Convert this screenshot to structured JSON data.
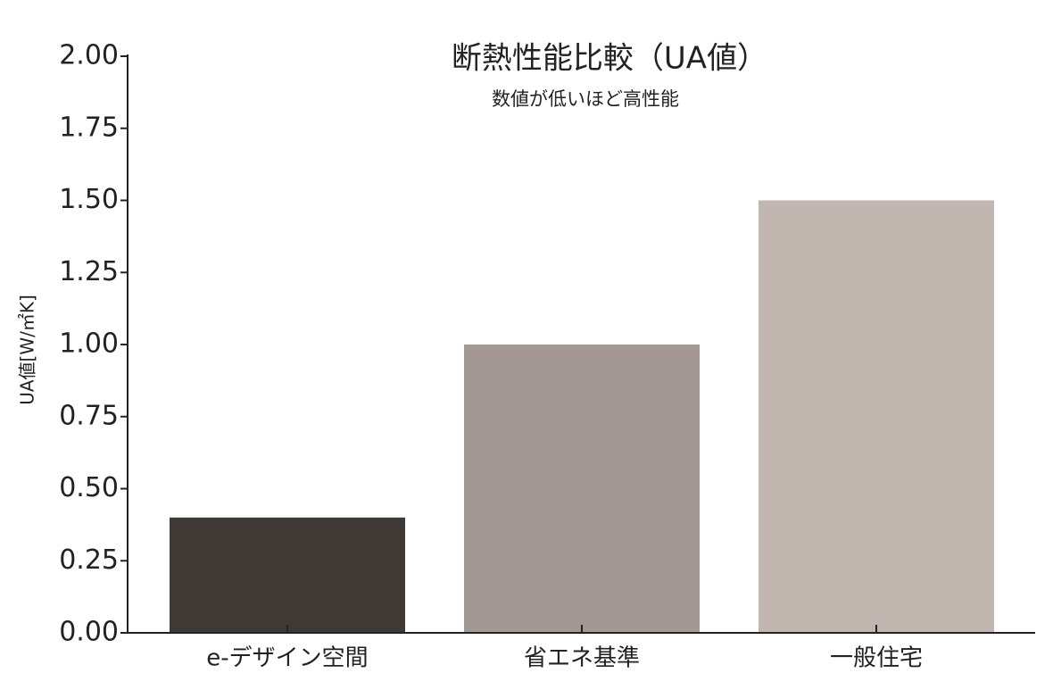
{
  "chart_data": {
    "type": "bar",
    "title": "断熱性能比較（UA値）",
    "subtitle": "数値が低いほど高性能",
    "y_label": "UA値[W/㎡K]",
    "categories": [
      "e-デザイン空間",
      "省エネ基準",
      "一般住宅"
    ],
    "values": [
      0.4,
      1.0,
      1.5
    ],
    "colors": [
      "#3e3935",
      "#a39893",
      "#c1b6b0"
    ],
    "ylim": [
      0,
      2
    ],
    "yticks": [
      {
        "value": 0,
        "label": "0.00"
      },
      {
        "value": 0.25,
        "label": "0.25"
      },
      {
        "value": 0.5,
        "label": "0.50"
      },
      {
        "value": 0.75,
        "label": "0.75"
      },
      {
        "value": 1,
        "label": "1.00"
      },
      {
        "value": 1.25,
        "label": "1.25"
      },
      {
        "value": 1.5,
        "label": "1.50"
      },
      {
        "value": 1.75,
        "label": "1.75"
      },
      {
        "value": 2,
        "label": "2.00"
      }
    ],
    "grid": false
  }
}
